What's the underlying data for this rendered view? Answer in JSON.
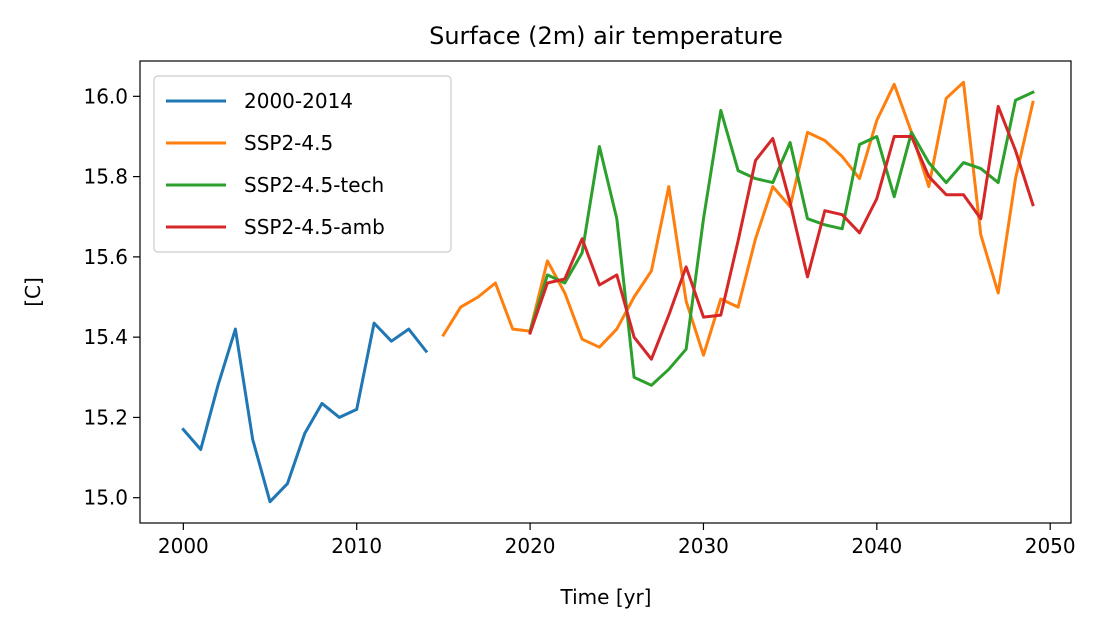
{
  "chart_data": {
    "type": "line",
    "title": "Surface (2m) air temperature",
    "xlabel": "Time [yr]",
    "ylabel": "[C]",
    "xlim": [
      1997.5,
      2051.2
    ],
    "ylim": [
      14.937,
      16.088
    ],
    "x_ticks": [
      2000,
      2010,
      2020,
      2030,
      2040,
      2050
    ],
    "x_tick_labels": [
      "2000",
      "2010",
      "2020",
      "2030",
      "2040",
      "2050"
    ],
    "y_ticks": [
      15.0,
      15.2,
      15.4,
      15.6,
      15.8,
      16.0
    ],
    "y_tick_labels": [
      "15.0",
      "15.2",
      "15.4",
      "15.6",
      "15.8",
      "16.0"
    ],
    "grid": false,
    "legend_position": "top-left",
    "series": [
      {
        "name": "2000-2014",
        "color": "#1f77b4",
        "x": [
          2000,
          2001,
          2002,
          2003,
          2004,
          2005,
          2006,
          2007,
          2008,
          2009,
          2010,
          2011,
          2012,
          2013,
          2014
        ],
        "y": [
          15.17,
          15.12,
          15.28,
          15.42,
          15.145,
          14.99,
          15.035,
          15.16,
          15.235,
          15.2,
          15.22,
          15.435,
          15.39,
          15.42,
          15.365
        ]
      },
      {
        "name": "SSP2-4.5",
        "color": "#ff7f0e",
        "x": [
          2015,
          2016,
          2017,
          2018,
          2019,
          2020,
          2021,
          2022,
          2023,
          2024,
          2025,
          2026,
          2027,
          2028,
          2029,
          2030,
          2031,
          2032,
          2033,
          2034,
          2035,
          2036,
          2037,
          2038,
          2039,
          2040,
          2041,
          2042,
          2043,
          2044,
          2045,
          2046,
          2047,
          2048,
          2049
        ],
        "y": [
          15.405,
          15.475,
          15.5,
          15.535,
          15.42,
          15.415,
          15.59,
          15.51,
          15.395,
          15.375,
          15.42,
          15.5,
          15.565,
          15.775,
          15.49,
          15.355,
          15.495,
          15.475,
          15.645,
          15.775,
          15.725,
          15.91,
          15.89,
          15.85,
          15.795,
          15.94,
          16.03,
          15.91,
          15.775,
          15.995,
          16.035,
          15.655,
          15.51,
          15.795,
          15.985
        ]
      },
      {
        "name": "SSP2-4.5-tech",
        "color": "#2ca02c",
        "x": [
          2020,
          2021,
          2022,
          2023,
          2024,
          2025,
          2026,
          2027,
          2028,
          2029,
          2030,
          2031,
          2032,
          2033,
          2034,
          2035,
          2036,
          2037,
          2038,
          2039,
          2040,
          2041,
          2042,
          2043,
          2044,
          2045,
          2046,
          2047,
          2048,
          2049
        ],
        "y": [
          15.415,
          15.555,
          15.535,
          15.61,
          15.875,
          15.695,
          15.3,
          15.28,
          15.32,
          15.37,
          15.695,
          15.965,
          15.815,
          15.795,
          15.785,
          15.885,
          15.695,
          15.68,
          15.67,
          15.88,
          15.9,
          15.75,
          15.91,
          15.835,
          15.785,
          15.835,
          15.82,
          15.785,
          15.99,
          16.01
        ]
      },
      {
        "name": "SSP2-4.5-amb",
        "color": "#d62728",
        "x": [
          2020,
          2021,
          2022,
          2023,
          2024,
          2025,
          2026,
          2027,
          2028,
          2029,
          2030,
          2031,
          2032,
          2033,
          2034,
          2035,
          2036,
          2037,
          2038,
          2039,
          2040,
          2041,
          2042,
          2043,
          2044,
          2045,
          2046,
          2047,
          2048,
          2049
        ],
        "y": [
          15.41,
          15.535,
          15.545,
          15.645,
          15.53,
          15.555,
          15.4,
          15.345,
          15.455,
          15.575,
          15.45,
          15.455,
          15.64,
          15.84,
          15.895,
          15.735,
          15.55,
          15.715,
          15.705,
          15.66,
          15.745,
          15.9,
          15.9,
          15.8,
          15.755,
          15.755,
          15.695,
          15.975,
          15.865,
          15.73
        ]
      }
    ]
  }
}
